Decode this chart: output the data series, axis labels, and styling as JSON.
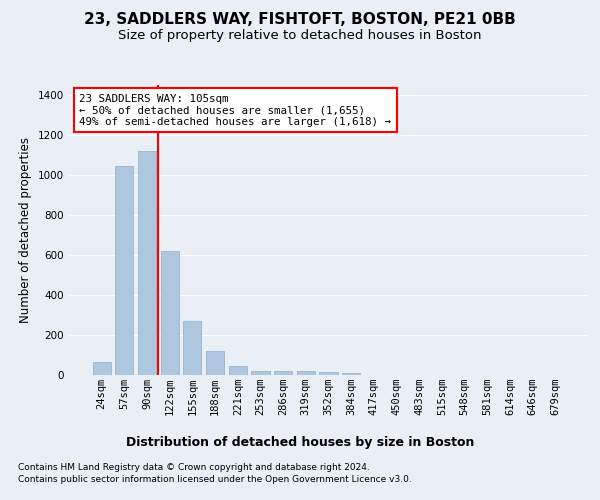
{
  "title1": "23, SADDLERS WAY, FISHTOFT, BOSTON, PE21 0BB",
  "title2": "Size of property relative to detached houses in Boston",
  "xlabel": "Distribution of detached houses by size in Boston",
  "ylabel": "Number of detached properties",
  "categories": [
    "24sqm",
    "57sqm",
    "90sqm",
    "122sqm",
    "155sqm",
    "188sqm",
    "221sqm",
    "253sqm",
    "286sqm",
    "319sqm",
    "352sqm",
    "384sqm",
    "417sqm",
    "450sqm",
    "483sqm",
    "515sqm",
    "548sqm",
    "581sqm",
    "614sqm",
    "646sqm",
    "679sqm"
  ],
  "values": [
    65,
    1047,
    1120,
    618,
    270,
    120,
    45,
    22,
    18,
    18,
    15,
    10,
    0,
    0,
    0,
    0,
    0,
    0,
    0,
    0,
    0
  ],
  "bar_color": "#aec6de",
  "bar_edge_color": "#8aaec8",
  "vline_color": "red",
  "vline_position": 2.5,
  "annotation_text": "23 SADDLERS WAY: 105sqm\n← 50% of detached houses are smaller (1,655)\n49% of semi-detached houses are larger (1,618) →",
  "annotation_box_facecolor": "white",
  "annotation_box_edgecolor": "red",
  "footnote1": "Contains HM Land Registry data © Crown copyright and database right 2024.",
  "footnote2": "Contains public sector information licensed under the Open Government Licence v3.0.",
  "ylim": [
    0,
    1450
  ],
  "yticks": [
    0,
    200,
    400,
    600,
    800,
    1000,
    1200,
    1400
  ],
  "bg_color": "#eaeef5",
  "plot_bg_color": "#eaeef5",
  "grid_color": "white",
  "title1_fontsize": 11,
  "title2_fontsize": 9.5,
  "tick_fontsize": 7.5,
  "ylabel_fontsize": 8.5,
  "xlabel_fontsize": 9
}
